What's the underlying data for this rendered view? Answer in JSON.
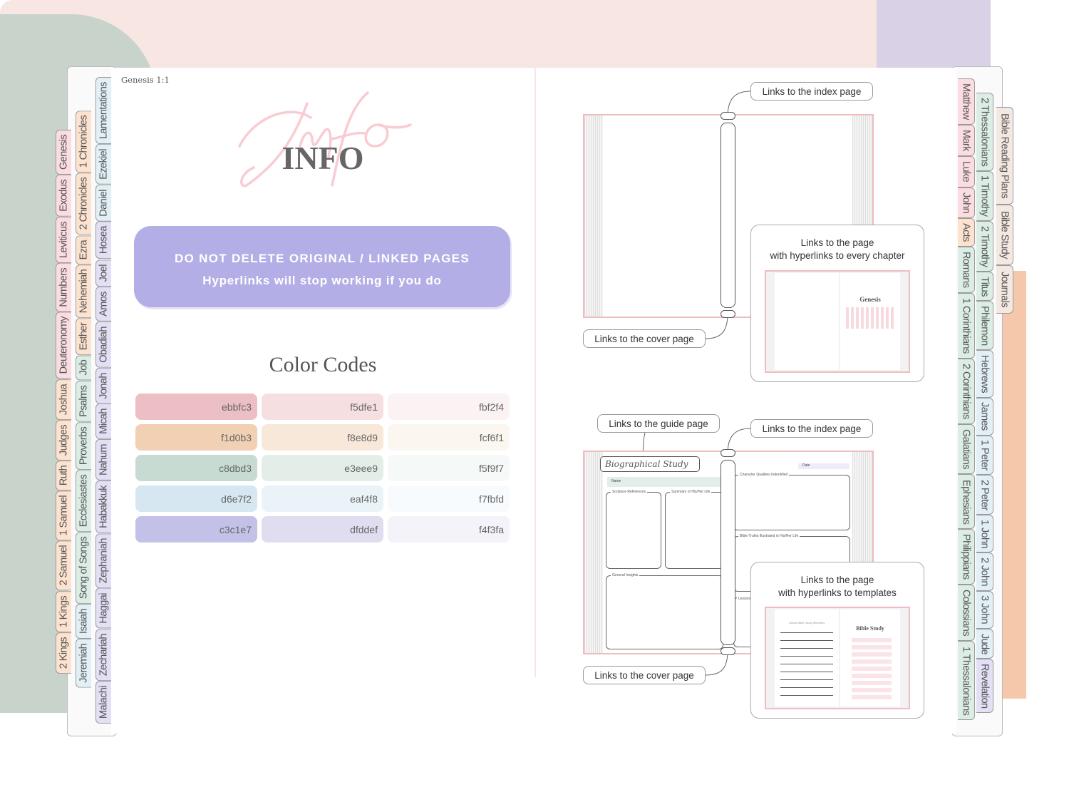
{
  "left_page": {
    "verse_ref": "Genesis 1:1",
    "info_script": "Info",
    "info_title": "INFO",
    "warning": {
      "line1": "DO NOT DELETE ORIGINAL / LINKED PAGES",
      "line2": "Hyperlinks will stop working if you do",
      "color": "#b3aee6"
    },
    "color_codes_title": "Color Codes",
    "color_codes": [
      [
        "ebbfc3",
        "f5dfe1",
        "fbf2f4"
      ],
      [
        "f1d0b3",
        "f8e8d9",
        "fcf6f1"
      ],
      [
        "c8dbd3",
        "e3eee9",
        "f5f9f7"
      ],
      [
        "d6e7f2",
        "eaf4f8",
        "f7fbfd"
      ],
      [
        "c3c1e7",
        "dfddef",
        "f4f3fa"
      ]
    ]
  },
  "tab_colors": {
    "pink": "#fbdde1",
    "peach": "#fde3cf",
    "green": "#dcede5",
    "blue": "#e2f0f6",
    "purple": "#e3dff4",
    "beige": "#f4e8e3"
  },
  "left_tabs": [
    [
      [
        "Genesis",
        "pink"
      ],
      [
        "Exodus",
        "pink"
      ],
      [
        "Leviticus",
        "pink"
      ],
      [
        "Numbers",
        "pink"
      ],
      [
        "Deuteronomy",
        "pink"
      ],
      [
        "Joshua",
        "peach"
      ],
      [
        "Judges",
        "peach"
      ],
      [
        "Ruth",
        "peach"
      ],
      [
        "1 Samuel",
        "peach"
      ],
      [
        "2 Samuel",
        "peach"
      ],
      [
        "1 Kings",
        "peach"
      ],
      [
        "2 Kings",
        "peach"
      ]
    ],
    [
      [
        "1 Chronicles",
        "peach"
      ],
      [
        "2 Chronicles",
        "peach"
      ],
      [
        "Ezra",
        "peach"
      ],
      [
        "Nehemiah",
        "peach"
      ],
      [
        "Esther",
        "peach"
      ],
      [
        "Job",
        "green"
      ],
      [
        "Psalms",
        "green"
      ],
      [
        "Proverbs",
        "green"
      ],
      [
        "Ecclesiastes",
        "green"
      ],
      [
        "Song of Songs",
        "green"
      ],
      [
        "Isaiah",
        "blue"
      ],
      [
        "Jeremiah",
        "blue"
      ]
    ],
    [
      [
        "Lamentations",
        "blue"
      ],
      [
        "Ezekiel",
        "blue"
      ],
      [
        "Daniel",
        "blue"
      ],
      [
        "Hosea",
        "purple"
      ],
      [
        "Joel",
        "purple"
      ],
      [
        "Amos",
        "purple"
      ],
      [
        "Obadiah",
        "purple"
      ],
      [
        "Jonah",
        "purple"
      ],
      [
        "Micah",
        "purple"
      ],
      [
        "Nahum",
        "purple"
      ],
      [
        "Habakkuk",
        "purple"
      ],
      [
        "Zephaniah",
        "purple"
      ],
      [
        "Haggai",
        "purple"
      ],
      [
        "Zechariah",
        "purple"
      ],
      [
        "Malachi",
        "purple"
      ]
    ]
  ],
  "right_tabs": [
    [
      [
        "Matthew",
        "pink"
      ],
      [
        "Mark",
        "pink"
      ],
      [
        "Luke",
        "pink"
      ],
      [
        "John",
        "pink"
      ],
      [
        "Acts",
        "peach"
      ],
      [
        "Romans",
        "green"
      ],
      [
        "1 Corinthians",
        "green"
      ],
      [
        "2 Corinthians",
        "green"
      ],
      [
        "Galatians",
        "green"
      ],
      [
        "Ephesians",
        "green"
      ],
      [
        "Philippians",
        "green"
      ],
      [
        "Colossians",
        "green"
      ],
      [
        "1 Thessalonians",
        "green"
      ]
    ],
    [
      [
        "2 Thessalonians",
        "green"
      ],
      [
        "1 Timothy",
        "green"
      ],
      [
        "2 Timothy",
        "green"
      ],
      [
        "Titus",
        "green"
      ],
      [
        "Philemon",
        "green"
      ],
      [
        "Hebrews",
        "blue"
      ],
      [
        "James",
        "blue"
      ],
      [
        "1 Peter",
        "blue"
      ],
      [
        "2 Peter",
        "blue"
      ],
      [
        "1 John",
        "blue"
      ],
      [
        "2 John",
        "blue"
      ],
      [
        "3 John",
        "blue"
      ],
      [
        "Jude",
        "blue"
      ],
      [
        "Revelation",
        "purple"
      ]
    ],
    [
      [
        "Bible Reading Plans",
        "beige"
      ],
      [
        "Bible Study",
        "beige"
      ],
      [
        "Journals",
        "beige"
      ]
    ]
  ],
  "right_page": {
    "diagram1": {
      "index_link": "Links to the index page",
      "cover_link": "Links to the cover page",
      "chapter_link_line1": "Links to the page",
      "chapter_link_line2": "with hyperlinks to every chapter",
      "preview_title": "Genesis"
    },
    "diagram2": {
      "guide_link": "Links to the guide page",
      "index_link": "Links to the index page",
      "cover_link": "Links to the cover page",
      "template_link_line1": "Links to the page",
      "template_link_line2": "with hyperlinks to templates",
      "page_title": "Biographical Study",
      "name_label": "Name",
      "date_label": "Date",
      "scripture_label": "Scripture References",
      "summary_label": "Summary of His/Her Life",
      "insights_label": "General Insights",
      "qualities_label": "Character Qualities Indentified",
      "truths_label": "Bible Truths Illustrated in His/Her Life",
      "lessons_label": "Lessons",
      "preview_left_title": "Useful Bible Study Websites",
      "preview_title": "Bible Study"
    }
  }
}
